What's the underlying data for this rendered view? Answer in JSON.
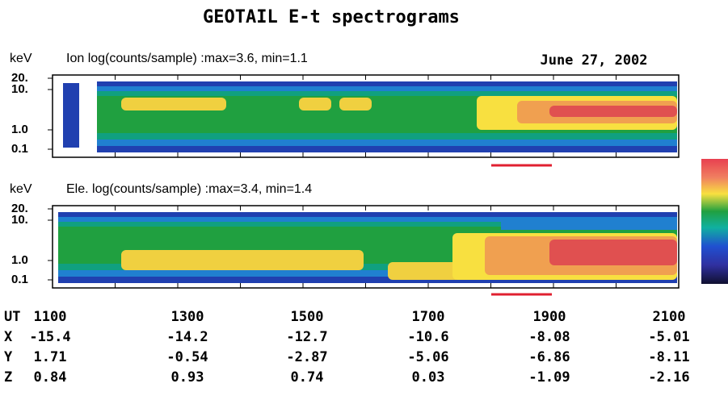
{
  "title": "GEOTAIL E-t spectrograms",
  "date": "June 27, 2002",
  "panels": [
    {
      "unit": "keV",
      "label": "Ion  log(counts/sample) :max=3.6, min=1.1",
      "y_labels": [
        "20.",
        "10.",
        "1.0",
        "0.1"
      ]
    },
    {
      "unit": "keV",
      "label": "Ele. log(counts/sample) :max=3.4, min=1.4",
      "y_labels": [
        "20.",
        "10.",
        "1.0",
        "0.1"
      ]
    }
  ],
  "orbit": {
    "rows": [
      [
        "UT",
        "1100",
        "1300",
        "1500",
        "1700",
        "1900",
        "2100"
      ],
      [
        "X",
        "-15.4",
        "-14.2",
        "-12.7",
        "-10.6",
        "-8.08",
        "-5.01"
      ],
      [
        "Y",
        "1.71",
        "-0.54",
        "-2.87",
        "-5.06",
        "-6.86",
        "-8.11"
      ],
      [
        "Z",
        "0.84",
        "0.93",
        "0.74",
        "0.03",
        "-1.09",
        "-2.16"
      ]
    ]
  }
}
